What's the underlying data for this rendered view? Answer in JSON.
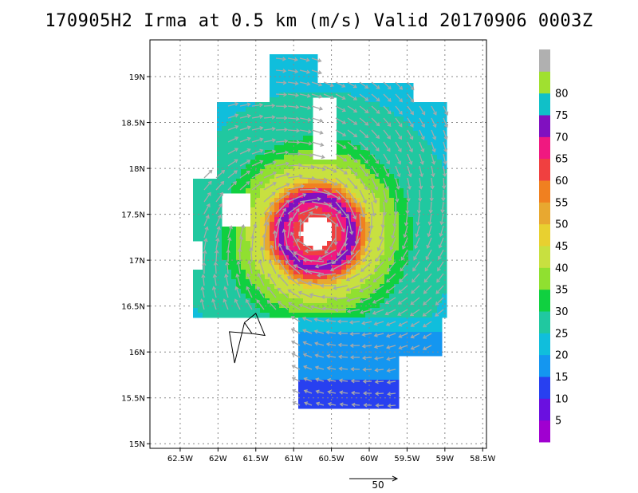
{
  "title": "170905H2 Irma at 0.5 km (m/s) Valid 20170906  0003Z",
  "map": {
    "lon_range": [
      -62.9,
      -58.45
    ],
    "lat_range": [
      14.95,
      19.4
    ],
    "lon_ticks": [
      {
        "value": -62.5,
        "label": "62.5W"
      },
      {
        "value": -62.0,
        "label": "62W"
      },
      {
        "value": -61.5,
        "label": "61.5W"
      },
      {
        "value": -61.0,
        "label": "61W"
      },
      {
        "value": -60.5,
        "label": "60.5W"
      },
      {
        "value": -60.0,
        "label": "60W"
      },
      {
        "value": -59.5,
        "label": "59.5W"
      },
      {
        "value": -59.0,
        "label": "59W"
      },
      {
        "value": -58.5,
        "label": "58.5W"
      }
    ],
    "lat_ticks": [
      {
        "value": 15.0,
        "label": "15N"
      },
      {
        "value": 15.5,
        "label": "15.5N"
      },
      {
        "value": 16.0,
        "label": "16N"
      },
      {
        "value": 16.5,
        "label": "16.5N"
      },
      {
        "value": 17.0,
        "label": "17N"
      },
      {
        "value": 17.5,
        "label": "17.5N"
      },
      {
        "value": 18.0,
        "label": "18N"
      },
      {
        "value": 18.5,
        "label": "18.5N"
      },
      {
        "value": 19.0,
        "label": "19N"
      }
    ],
    "grid": true,
    "storm_center": {
      "lon": -60.7,
      "lat": 17.3
    },
    "island_outline": [
      [
        -61.65,
        16.32
      ],
      [
        -61.55,
        16.2
      ],
      [
        -61.38,
        16.18
      ],
      [
        -61.5,
        16.42
      ],
      [
        -61.65,
        16.32
      ],
      [
        -61.78,
        15.88
      ],
      [
        -61.85,
        16.22
      ],
      [
        -61.55,
        16.2
      ]
    ]
  },
  "colorbar": {
    "labels": [
      "5",
      "10",
      "15",
      "20",
      "25",
      "30",
      "35",
      "40",
      "45",
      "50",
      "55",
      "60",
      "65",
      "70",
      "75",
      "80"
    ],
    "colors": [
      "#a000d0",
      "#6a10e0",
      "#2840f0",
      "#1496f0",
      "#10bedc",
      "#20c8a0",
      "#10d040",
      "#90e030",
      "#c8e040",
      "#e8d030",
      "#e8a830",
      "#f08020",
      "#f04040",
      "#f01880",
      "#8010c0",
      "#10c0c8",
      "#a0e030",
      "#b0b0b0"
    ],
    "bin_width": 5
  },
  "reference_vector": {
    "label": "50",
    "value": 50
  },
  "vector_color": "#a8a8a8"
}
